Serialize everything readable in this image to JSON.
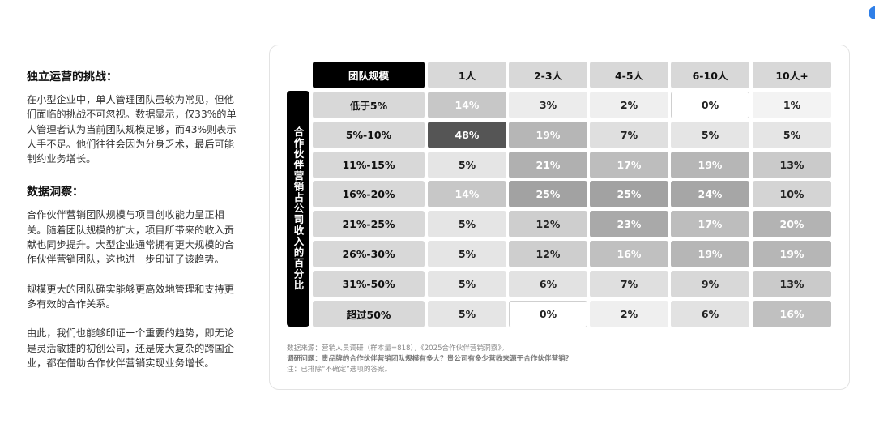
{
  "sections": [
    {
      "title": "独立运营的挑战：",
      "paragraphs": [
        "在小型企业中，单人管理团队虽较为常见，但他们面临的挑战不可忽视。数据显示，仅33%的单人管理者认为当前团队规模足够，而43%则表示人手不足。他们往往会因为分身乏术，最后可能制约业务增长。"
      ]
    },
    {
      "title": "数据洞察：",
      "paragraphs": [
        "合作伙伴营销团队规模与项目创收能力呈正相关。随着团队规模的扩大，项目所带来的收入贡献也同步提升。大型企业通常拥有更大规模的合作伙伴营销团队，这也进一步印证了该趋势。",
        "规模更大的团队确实能够更高效地管理和支持更多有效的合作关系。",
        "由此，我们也能够印证一个重要的趋势，即无论是灵活敏捷的初创公司，还是庞大复杂的跨国企业，都在借助合作伙伴营销实现业务增长。"
      ]
    }
  ],
  "chart_data": {
    "type": "heatmap",
    "corner_label": "团队规模",
    "y_axis_label": "合作伙伴营销占公司收入的百分比",
    "columns": [
      "1人",
      "2-3人",
      "4-5人",
      "6-10人",
      "10人+"
    ],
    "rows": [
      "低于5%",
      "5%-10%",
      "11%-15%",
      "16%-20%",
      "21%-25%",
      "26%-30%",
      "31%-50%",
      "超过50%"
    ],
    "values": [
      [
        14,
        3,
        2,
        0,
        1
      ],
      [
        48,
        19,
        7,
        5,
        5
      ],
      [
        5,
        21,
        17,
        19,
        13
      ],
      [
        14,
        25,
        25,
        24,
        10
      ],
      [
        5,
        12,
        23,
        17,
        20
      ],
      [
        5,
        12,
        16,
        19,
        19
      ],
      [
        5,
        6,
        7,
        9,
        13
      ],
      [
        5,
        0,
        2,
        6,
        16
      ]
    ],
    "value_suffix": "%",
    "footnotes": [
      "数据来源：营销人员调研（样本量=818），《2025合作伙伴营销洞察》。",
      "调研问题：贵品牌的合作伙伴营销团队规模有多大？贵公司有多少营收来源于合作伙伴营销？",
      "注：已排除“不确定”选项的答案。"
    ]
  }
}
